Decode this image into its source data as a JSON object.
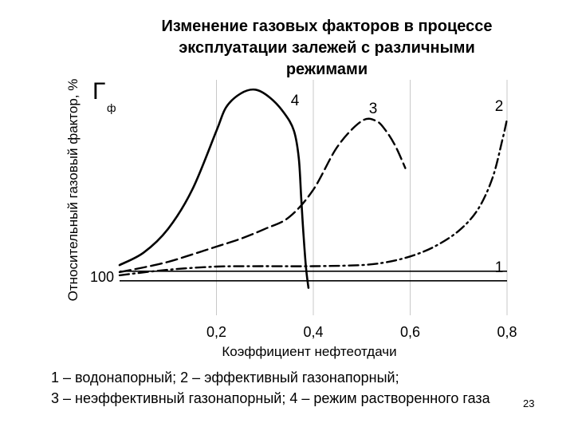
{
  "title": {
    "line1": "Изменение газовых факторов в процессе",
    "line2": "эксплуатации залежей с различными",
    "line3": "режимами"
  },
  "chart_data": {
    "type": "line",
    "ylabel": "Относительный газовый фактор, %",
    "yaxis_symbol": "Г",
    "yaxis_subscript": "ф",
    "xlabel": "Коэффициент нефтеотдачи",
    "xlim": [
      0,
      0.8
    ],
    "ylim": [
      0,
      600
    ],
    "xticks": [
      "0,2",
      "0,4",
      "0,6",
      "0,8"
    ],
    "xtick_values": [
      0.2,
      0.4,
      0.6,
      0.8
    ],
    "yticks": [
      "100"
    ],
    "ytick_values": [
      100
    ],
    "grid": "vertical",
    "series": [
      {
        "name": "1",
        "style": "solid-double",
        "x": [
          0,
          0.8
        ],
        "y": [
          100,
          100
        ]
      },
      {
        "name": "2",
        "style": "dashdot",
        "x": [
          0,
          0.1,
          0.2,
          0.3,
          0.4,
          0.5,
          0.55,
          0.6,
          0.65,
          0.7,
          0.74,
          0.77,
          0.79,
          0.8
        ],
        "y": [
          102,
          116,
          124,
          125,
          125,
          128,
          135,
          150,
          175,
          215,
          270,
          350,
          445,
          500
        ]
      },
      {
        "name": "3",
        "style": "dashed",
        "x": [
          0,
          0.05,
          0.1,
          0.15,
          0.2,
          0.25,
          0.3,
          0.35,
          0.4,
          0.45,
          0.5,
          0.53,
          0.55,
          0.57,
          0.59
        ],
        "y": [
          110,
          122,
          136,
          155,
          175,
          195,
          220,
          250,
          320,
          430,
          495,
          495,
          470,
          430,
          375
        ]
      },
      {
        "name": "4",
        "style": "solid",
        "x": [
          0,
          0.05,
          0.1,
          0.15,
          0.2,
          0.22,
          0.25,
          0.28,
          0.31,
          0.34,
          0.36,
          0.37,
          0.375,
          0.38,
          0.385,
          0.39
        ],
        "y": [
          128,
          160,
          220,
          320,
          470,
          530,
          565,
          575,
          555,
          515,
          470,
          400,
          300,
          200,
          120,
          70
        ]
      }
    ]
  },
  "legend": {
    "line1": "1 – водонапорный;      2 – эффективный газонапорный;",
    "line2": "3 – неэффективный газонапорный;   4 – режим растворенного газа"
  },
  "page_number": "23"
}
